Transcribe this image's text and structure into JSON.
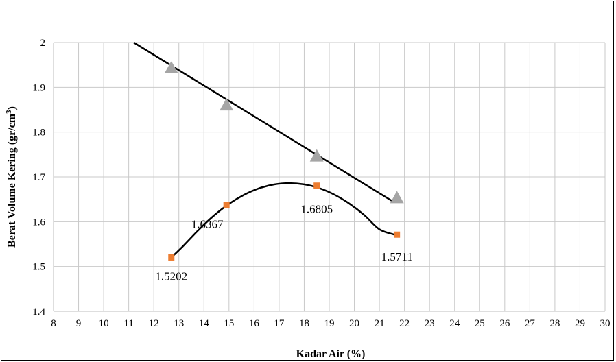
{
  "chart_data": {
    "type": "scatter",
    "xlabel": "Kadar Air (%)",
    "ylabel": "Berat Volume Kering (gr/cm",
    "ylabel_sup": "3",
    "ylabel_close": ")",
    "xlim": [
      8,
      30
    ],
    "ylim": [
      1.4,
      2.0
    ],
    "x_ticks": [
      8,
      9,
      10,
      11,
      12,
      13,
      14,
      15,
      16,
      17,
      18,
      19,
      20,
      21,
      22,
      23,
      24,
      25,
      26,
      27,
      28,
      29,
      30
    ],
    "y_ticks": [
      1.4,
      1.5,
      1.6,
      1.7,
      1.8,
      1.9,
      2.0
    ],
    "y_tick_labels": [
      "1.4",
      "1.5",
      "1.6",
      "1.7",
      "1.8",
      "1.9",
      "2"
    ],
    "grid": true,
    "series": [
      {
        "marker": "square",
        "color": "#ED7D31",
        "x": [
          12.7,
          14.9,
          18.5,
          21.7
        ],
        "y": [
          1.5202,
          1.6367,
          1.6805,
          1.5711
        ],
        "labels": [
          "1.5202",
          "1.6367",
          "1.6805",
          "1.5711"
        ],
        "trendline": "polynomial",
        "trend_x": [
          12.7,
          13.2,
          13.8,
          14.4,
          15.0,
          15.6,
          16.2,
          16.8,
          17.4,
          18.0,
          18.6,
          19.2,
          19.8,
          20.4,
          21.0,
          21.6
        ],
        "trend_y": [
          1.52,
          1.5474,
          1.5824,
          1.6137,
          1.6398,
          1.66,
          1.6745,
          1.6832,
          1.6861,
          1.6833,
          1.6748,
          1.6605,
          1.6404,
          1.6146,
          1.583,
          1.571
        ]
      },
      {
        "marker": "triangle",
        "color": "#A5A5A5",
        "x": [
          12.7,
          14.9,
          18.5,
          21.7
        ],
        "y": [
          1.945,
          1.862,
          1.748,
          1.655
        ],
        "trendline": "linear",
        "trend_x": [
          11.2,
          21.6
        ],
        "trend_y": [
          2.0,
          1.643
        ]
      }
    ]
  }
}
